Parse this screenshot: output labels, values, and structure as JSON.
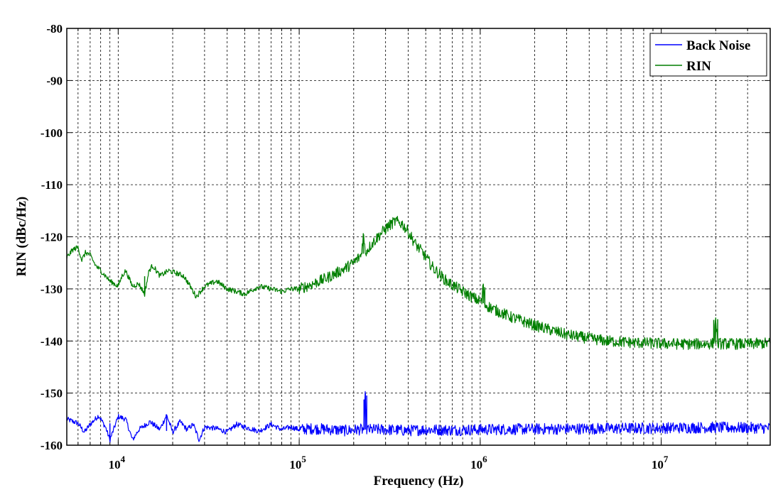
{
  "chart_data": {
    "type": "line",
    "xscale": "log",
    "xlim": [
      5200,
      40000000
    ],
    "ylim": [
      -160,
      -80
    ],
    "grid": true,
    "grid_style": "dashed",
    "legend_position": "top-right",
    "xlabel": "Frequency (Hz)",
    "ylabel": "RIN (dBc/Hz)",
    "xticks": [
      {
        "value": 10000,
        "base": "10",
        "exp": "4"
      },
      {
        "value": 100000,
        "base": "10",
        "exp": "5"
      },
      {
        "value": 1000000,
        "base": "10",
        "exp": "6"
      },
      {
        "value": 10000000,
        "base": "10",
        "exp": "7"
      }
    ],
    "yticks": [
      {
        "value": -80,
        "label": "-80"
      },
      {
        "value": -90,
        "label": "-90"
      },
      {
        "value": -100,
        "label": "-100"
      },
      {
        "value": -110,
        "label": "-110"
      },
      {
        "value": -120,
        "label": "-120"
      },
      {
        "value": -130,
        "label": "-130"
      },
      {
        "value": -140,
        "label": "-140"
      },
      {
        "value": -150,
        "label": "-150"
      },
      {
        "value": -160,
        "label": "-160"
      }
    ],
    "series": [
      {
        "name": "Back Noise",
        "color": "#0000ff",
        "points": [
          [
            5200,
            -155.0
          ],
          [
            6000,
            -155.8
          ],
          [
            6500,
            -157.5
          ],
          [
            7000,
            -156.0
          ],
          [
            7800,
            -154.3
          ],
          [
            8500,
            -156.5
          ],
          [
            9000,
            -159.0
          ],
          [
            10000,
            -154.5
          ],
          [
            11000,
            -155.0
          ],
          [
            12000,
            -159.0
          ],
          [
            13000,
            -157.0
          ],
          [
            15000,
            -155.5
          ],
          [
            17000,
            -157.0
          ],
          [
            18500,
            -154.2
          ],
          [
            20000,
            -157.5
          ],
          [
            22000,
            -155.5
          ],
          [
            24000,
            -157.0
          ],
          [
            26000,
            -156.0
          ],
          [
            28000,
            -159.0
          ],
          [
            30000,
            -156.5
          ],
          [
            35000,
            -156.8
          ],
          [
            40000,
            -157.5
          ],
          [
            45000,
            -156.0
          ],
          [
            50000,
            -156.5
          ],
          [
            60000,
            -157.3
          ],
          [
            70000,
            -156.0
          ],
          [
            80000,
            -157.0
          ],
          [
            90000,
            -156.5
          ],
          [
            100000,
            -157.0
          ],
          [
            120000,
            -156.8
          ],
          [
            150000,
            -157.0
          ],
          [
            180000,
            -157.2
          ],
          [
            210000,
            -157.0
          ],
          [
            228000,
            -157.0
          ],
          [
            232000,
            -150.0
          ],
          [
            236000,
            -157.0
          ],
          [
            300000,
            -157.0
          ],
          [
            400000,
            -157.2
          ],
          [
            500000,
            -157.0
          ],
          [
            700000,
            -157.1
          ],
          [
            1000000,
            -157.0
          ],
          [
            2000000,
            -156.9
          ],
          [
            5000000,
            -156.8
          ],
          [
            10000000,
            -156.7
          ],
          [
            18000000,
            -156.6
          ],
          [
            40000000,
            -156.7
          ]
        ]
      },
      {
        "name": "RIN",
        "color": "#007f00",
        "points": [
          [
            5200,
            -124.0
          ],
          [
            5600,
            -122.5
          ],
          [
            6000,
            -122.0
          ],
          [
            6300,
            -124.5
          ],
          [
            6600,
            -123.0
          ],
          [
            7000,
            -123.5
          ],
          [
            7500,
            -125.5
          ],
          [
            8000,
            -126.5
          ],
          [
            8500,
            -127.5
          ],
          [
            9000,
            -128.5
          ],
          [
            9500,
            -129.0
          ],
          [
            10000,
            -129.5
          ],
          [
            10500,
            -127.5
          ],
          [
            11000,
            -126.5
          ],
          [
            12000,
            -129.5
          ],
          [
            13000,
            -129.0
          ],
          [
            14000,
            -131.0
          ],
          [
            14800,
            -126.5
          ],
          [
            15500,
            -125.5
          ],
          [
            17000,
            -127.5
          ],
          [
            19000,
            -126.5
          ],
          [
            21000,
            -127.0
          ],
          [
            23000,
            -127.5
          ],
          [
            25000,
            -129.5
          ],
          [
            27000,
            -131.5
          ],
          [
            30000,
            -129.5
          ],
          [
            35000,
            -128.5
          ],
          [
            40000,
            -130.0
          ],
          [
            45000,
            -130.5
          ],
          [
            50000,
            -131.0
          ],
          [
            60000,
            -129.5
          ],
          [
            70000,
            -130.0
          ],
          [
            80000,
            -130.5
          ],
          [
            90000,
            -130.0
          ],
          [
            100000,
            -130.0
          ],
          [
            120000,
            -129.0
          ],
          [
            140000,
            -128.0
          ],
          [
            160000,
            -127.0
          ],
          [
            180000,
            -126.0
          ],
          [
            200000,
            -125.0
          ],
          [
            220000,
            -123.5
          ],
          [
            226000,
            -119.5
          ],
          [
            232000,
            -123.0
          ],
          [
            250000,
            -121.5
          ],
          [
            280000,
            -119.5
          ],
          [
            310000,
            -118.0
          ],
          [
            340000,
            -117.0
          ],
          [
            370000,
            -117.5
          ],
          [
            400000,
            -119.0
          ],
          [
            440000,
            -121.5
          ],
          [
            480000,
            -123.0
          ],
          [
            550000,
            -126.0
          ],
          [
            650000,
            -128.5
          ],
          [
            800000,
            -130.5
          ],
          [
            950000,
            -132.0
          ],
          [
            1020000,
            -132.5
          ],
          [
            1040000,
            -129.0
          ],
          [
            1060000,
            -133.0
          ],
          [
            1200000,
            -134.0
          ],
          [
            1500000,
            -135.5
          ],
          [
            2000000,
            -137.0
          ],
          [
            2500000,
            -138.0
          ],
          [
            3000000,
            -138.8
          ],
          [
            4000000,
            -139.5
          ],
          [
            5000000,
            -140.0
          ],
          [
            7000000,
            -140.3
          ],
          [
            10000000,
            -140.5
          ],
          [
            15000000,
            -140.6
          ],
          [
            19500000,
            -140.5
          ],
          [
            20000000,
            -135.5
          ],
          [
            20500000,
            -140.5
          ],
          [
            30000000,
            -140.6
          ],
          [
            40000000,
            -140.4
          ]
        ]
      }
    ]
  }
}
